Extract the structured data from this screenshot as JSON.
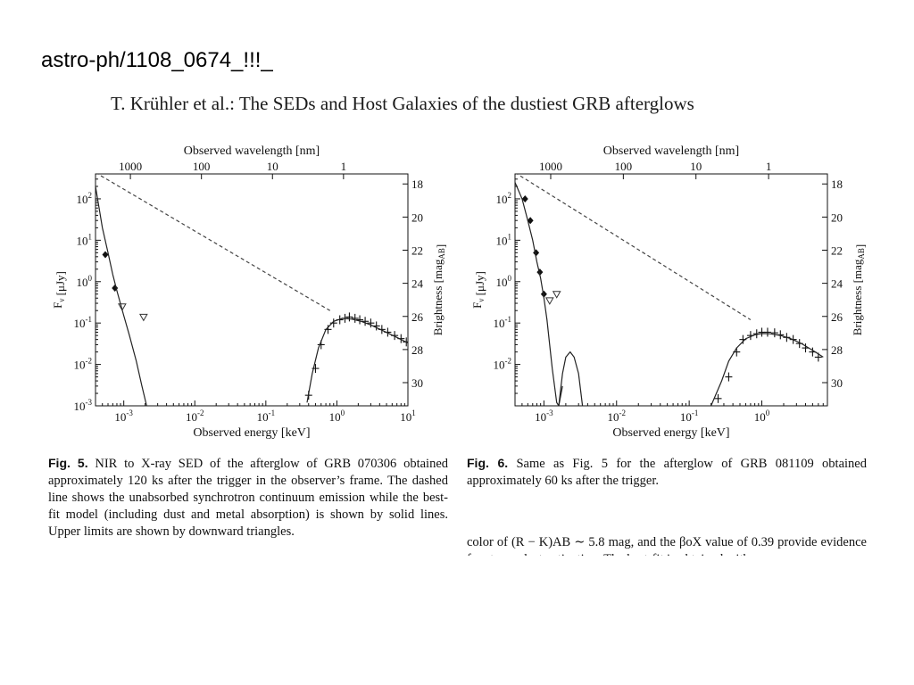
{
  "slide": {
    "label": "astro-ph/1108_0674_!!!_"
  },
  "header": {
    "running_head": "T. Krühler et al.: The SEDs and Host Galaxies of the dustiest GRB afterglows"
  },
  "figures": [
    {
      "x2label": "Observed wavelength [nm]",
      "xlabel": "Observed energy [keV]",
      "ylabel": "F_ν [μJy]",
      "y2label": "Brightness [mag_AB]",
      "caption_label": "Fig. 5.",
      "caption_text": " NIR to X-ray SED of the afterglow of GRB 070306 obtained approximately 120 ks after the trigger in the observer’s frame. The dashed line shows the unabsorbed synchrotron continuum emission while the best-fit model (including dust and metal absorption) is shown by solid lines. Upper limits are shown by downward triangles."
    },
    {
      "x2label": "Observed wavelength [nm]",
      "xlabel": "Observed energy [keV]",
      "ylabel": "F_ν [μJy]",
      "y2label": "Brightness [mag_AB]",
      "caption_label": "Fig. 6.",
      "caption_text": " Same as Fig. 5 for the afterglow of GRB 081109 obtained approximately 60 ks after the trigger."
    }
  ],
  "body_text": "color of (R − K)AB ∼ 5.8 mag, and the βoX value of 0.39 provide evidence for strong dust extinction. The best-fit is obtained with",
  "chart_data": [
    {
      "type": "scatter",
      "title": "",
      "xlabel": "Observed energy [keV]",
      "ylabel": "F_ν [μJy]",
      "x2label": "Observed wavelength [nm]",
      "y2label": "Brightness [mag_AB]",
      "xscale": "log",
      "yscale": "log",
      "xlim": [
        0.0004,
        10
      ],
      "ylim": [
        0.001,
        400
      ],
      "xticks": [
        0.001,
        0.01,
        0.1,
        1,
        10
      ],
      "xtick_labels": [
        "10^-3",
        "10^-2",
        "10^-1",
        "10^0",
        "10^1"
      ],
      "yticks": [
        0.001,
        0.01,
        0.1,
        1,
        10,
        100
      ],
      "ytick_labels": [
        "10^-3",
        "10^-2",
        "10^-1",
        "10^0",
        "10^1",
        "10^2"
      ],
      "x2ticks": [
        1000,
        100,
        10,
        1
      ],
      "y2ticks": [
        18,
        20,
        22,
        24,
        26,
        28,
        30
      ],
      "series": [
        {
          "name": "",
          "kind": "nir_points",
          "marker": "diamond",
          "x": [
            0.00055,
            0.00075
          ],
          "y": [
            4.5,
            0.7
          ]
        },
        {
          "name": "",
          "kind": "upper_limits",
          "marker": "triangle-down",
          "x": [
            0.00095,
            0.0019
          ],
          "y": [
            0.25,
            0.14
          ]
        },
        {
          "name": "",
          "kind": "xray_points",
          "marker": "cross",
          "x": [
            0.4,
            0.5,
            0.6,
            0.75,
            0.9,
            1.1,
            1.3,
            1.5,
            1.8,
            2.1,
            2.5,
            3.0,
            3.6,
            4.3,
            5.2,
            6.5,
            8.0,
            9.5
          ],
          "y": [
            0.0018,
            0.008,
            0.03,
            0.07,
            0.1,
            0.12,
            0.13,
            0.14,
            0.13,
            0.12,
            0.11,
            0.1,
            0.085,
            0.07,
            0.06,
            0.05,
            0.042,
            0.035
          ]
        },
        {
          "name": "",
          "kind": "unabsorbed_model",
          "style": "dashed",
          "x": [
            0.0004,
            0.8
          ],
          "y": [
            430,
            0.2
          ]
        },
        {
          "name": "",
          "kind": "nir_model",
          "style": "solid",
          "x": [
            0.0004,
            0.0005,
            0.0006,
            0.0007,
            0.0008,
            0.001,
            0.0012,
            0.0015,
            0.0018,
            0.0021
          ],
          "y": [
            200,
            20,
            5,
            1.5,
            0.6,
            0.15,
            0.05,
            0.012,
            0.003,
            0.001
          ]
        },
        {
          "name": "",
          "kind": "xray_model",
          "style": "solid",
          "x": [
            0.38,
            0.45,
            0.55,
            0.7,
            0.9,
            1.2,
            1.6,
            2.2,
            3.0,
            4.5,
            7.0,
            10.0
          ],
          "y": [
            0.0012,
            0.006,
            0.025,
            0.07,
            0.11,
            0.13,
            0.125,
            0.11,
            0.09,
            0.065,
            0.045,
            0.033
          ]
        }
      ]
    },
    {
      "type": "scatter",
      "title": "",
      "xlabel": "Observed energy [keV]",
      "ylabel": "F_ν [μJy]",
      "x2label": "Observed wavelength [nm]",
      "y2label": "Brightness [mag_AB]",
      "xscale": "log",
      "yscale": "log",
      "xlim": [
        0.0004,
        8
      ],
      "ylim": [
        0.001,
        400
      ],
      "xticks": [
        0.001,
        0.01,
        0.1,
        1
      ],
      "xtick_labels": [
        "10^-3",
        "10^-2",
        "10^-1",
        "10^0"
      ],
      "yticks": [
        0.01,
        0.1,
        1,
        10,
        100
      ],
      "ytick_labels": [
        "10^-2",
        "10^-1",
        "10^0",
        "10^1",
        "10^2"
      ],
      "x2ticks": [
        1000,
        100,
        10,
        1
      ],
      "y2ticks": [
        18,
        20,
        22,
        24,
        26,
        28,
        30
      ],
      "series": [
        {
          "name": "",
          "kind": "nir_points",
          "marker": "diamond",
          "x": [
            0.00055,
            0.00065,
            0.00078,
            0.00088,
            0.001
          ],
          "y": [
            100,
            30,
            5,
            1.7,
            0.5
          ]
        },
        {
          "name": "",
          "kind": "upper_limits",
          "marker": "triangle-down",
          "x": [
            0.0012,
            0.0015
          ],
          "y": [
            0.35,
            0.5
          ]
        },
        {
          "name": "",
          "kind": "xray_points",
          "marker": "cross",
          "x": [
            0.25,
            0.35,
            0.45,
            0.55,
            0.7,
            0.85,
            1.0,
            1.2,
            1.5,
            1.8,
            2.2,
            2.7,
            3.3,
            4.0,
            5.0,
            6.0
          ],
          "y": [
            0.0015,
            0.005,
            0.02,
            0.04,
            0.05,
            0.055,
            0.06,
            0.06,
            0.058,
            0.052,
            0.045,
            0.04,
            0.032,
            0.025,
            0.02,
            0.015
          ]
        },
        {
          "name": "",
          "kind": "unabsorbed_model",
          "style": "dashed",
          "x": [
            0.0004,
            0.7
          ],
          "y": [
            430,
            0.12
          ]
        },
        {
          "name": "",
          "kind": "nir_model",
          "style": "solid",
          "x": [
            0.0004,
            0.0005,
            0.0006,
            0.0007,
            0.0008,
            0.0009,
            0.001,
            0.0011,
            0.0012,
            0.0013,
            0.0014,
            0.0015,
            0.0016,
            0.0018
          ],
          "y": [
            250,
            100,
            30,
            10,
            3,
            1.2,
            0.4,
            0.12,
            0.03,
            0.008,
            0.003,
            0.0012,
            0.001,
            0.003
          ]
        },
        {
          "name": "",
          "kind": "nir_model_bump",
          "style": "solid",
          "x": [
            0.0016,
            0.0018,
            0.002,
            0.0023,
            0.0026,
            0.003,
            0.0034
          ],
          "y": [
            0.001,
            0.006,
            0.015,
            0.02,
            0.015,
            0.006,
            0.001
          ]
        },
        {
          "name": "",
          "kind": "xray_model",
          "style": "solid",
          "x": [
            0.2,
            0.28,
            0.35,
            0.45,
            0.6,
            0.8,
            1.0,
            1.3,
            1.8,
            2.5,
            3.5,
            5.0,
            7.0
          ],
          "y": [
            0.001,
            0.004,
            0.012,
            0.025,
            0.042,
            0.052,
            0.056,
            0.055,
            0.05,
            0.042,
            0.032,
            0.022,
            0.015
          ]
        }
      ]
    }
  ]
}
